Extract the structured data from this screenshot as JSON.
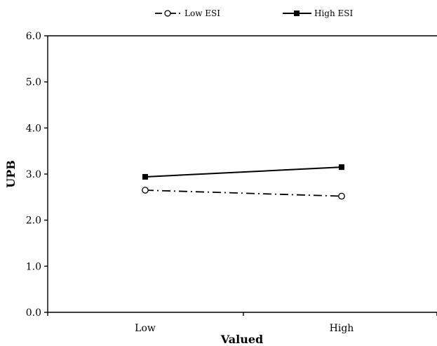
{
  "chart_data": {
    "type": "line",
    "categories": [
      "Low",
      "High"
    ],
    "series": [
      {
        "name": "Low ESI",
        "values": [
          2.65,
          2.52
        ],
        "marker": "open-circle",
        "line_style": "dash-dot",
        "color": "#000000"
      },
      {
        "name": "High ESI",
        "values": [
          2.94,
          3.15
        ],
        "marker": "filled-square",
        "line_style": "solid",
        "color": "#000000"
      }
    ],
    "title": "",
    "xlabel": "Valued",
    "ylabel": "UPB",
    "ylim": [
      0,
      6
    ],
    "yticks": [
      "0.0",
      "1.0",
      "2.0",
      "3.0",
      "4.0",
      "5.0",
      "6.0"
    ],
    "grid": false,
    "legend_position": "top-center"
  }
}
